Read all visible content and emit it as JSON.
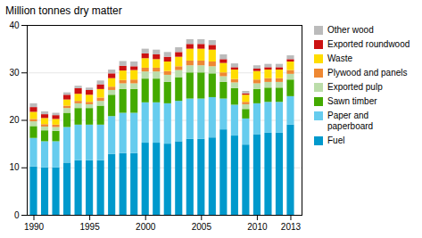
{
  "chart_data": {
    "type": "bar",
    "title": "Million tonnes dry matter",
    "stacked": true,
    "x": [
      1990,
      1991,
      1992,
      1993,
      1994,
      1995,
      1996,
      1997,
      1998,
      1999,
      2000,
      2001,
      2002,
      2003,
      2004,
      2005,
      2006,
      2007,
      2008,
      2009,
      2010,
      2011,
      2012,
      2013
    ],
    "series": [
      {
        "name": "Fuel",
        "color": "#0099cc",
        "values": [
          10.2,
          10.0,
          10.0,
          11.0,
          11.5,
          11.5,
          11.5,
          12.8,
          13.0,
          13.0,
          15.2,
          15.2,
          15.0,
          15.5,
          16.0,
          16.0,
          16.3,
          18.0,
          16.7,
          14.8,
          17.0,
          17.3,
          17.3,
          19.0
        ]
      },
      {
        "name": "Paper and\npaperboard",
        "color": "#66ccee",
        "values": [
          6.0,
          5.5,
          5.5,
          7.5,
          7.5,
          7.5,
          7.5,
          8.0,
          8.5,
          8.5,
          8.5,
          8.5,
          8.5,
          8.5,
          8.5,
          8.5,
          8.5,
          6.5,
          6.5,
          5.5,
          6.5,
          6.5,
          6.5,
          6.0
        ]
      },
      {
        "name": "Sawn timber",
        "color": "#44aa00",
        "values": [
          2.5,
          2.3,
          2.2,
          3.0,
          3.5,
          3.5,
          4.0,
          4.5,
          5.0,
          5.0,
          5.0,
          5.0,
          4.5,
          5.0,
          5.5,
          5.5,
          5.0,
          3.5,
          3.5,
          2.0,
          3.0,
          3.0,
          3.0,
          3.5
        ]
      },
      {
        "name": "Exported pulp",
        "color": "#bbddaa",
        "values": [
          1.0,
          0.8,
          0.8,
          1.0,
          1.0,
          0.8,
          1.0,
          1.0,
          1.2,
          1.2,
          1.5,
          1.5,
          1.5,
          1.5,
          1.5,
          1.5,
          1.5,
          1.2,
          1.2,
          1.0,
          1.2,
          1.2,
          1.2,
          1.2
        ]
      },
      {
        "name": "Plywood and panels",
        "color": "#ee8833",
        "values": [
          0.5,
          0.5,
          0.5,
          0.5,
          0.5,
          0.5,
          0.7,
          0.7,
          0.7,
          0.8,
          0.8,
          0.8,
          0.8,
          0.8,
          1.0,
          1.0,
          1.0,
          0.8,
          0.7,
          0.5,
          0.8,
          0.8,
          0.8,
          0.8
        ]
      },
      {
        "name": "Waste",
        "color": "#ffdd00",
        "values": [
          1.5,
          1.3,
          1.2,
          1.3,
          1.5,
          1.5,
          1.8,
          1.8,
          2.0,
          2.0,
          2.0,
          1.8,
          2.0,
          2.0,
          2.5,
          2.5,
          2.5,
          2.0,
          2.0,
          1.5,
          1.8,
          1.8,
          1.8,
          1.8
        ]
      },
      {
        "name": "Exported roundwood",
        "color": "#cc1111",
        "values": [
          1.0,
          0.8,
          0.8,
          1.0,
          1.2,
          1.0,
          1.0,
          1.0,
          1.0,
          0.8,
          1.0,
          1.0,
          1.0,
          1.0,
          1.0,
          1.0,
          1.0,
          0.8,
          0.5,
          0.3,
          0.5,
          0.5,
          0.5,
          0.5
        ]
      },
      {
        "name": "Other wood",
        "color": "#bbbbbb",
        "values": [
          0.8,
          0.6,
          0.5,
          0.5,
          0.5,
          0.5,
          0.8,
          0.8,
          1.0,
          1.0,
          1.0,
          1.0,
          1.0,
          1.0,
          1.0,
          1.0,
          1.0,
          1.0,
          0.8,
          0.5,
          0.7,
          0.7,
          0.7,
          0.8
        ]
      }
    ],
    "xlim": [
      1989.4,
      2014.0
    ],
    "xticks": [
      1990,
      1995,
      2000,
      2005,
      2010,
      2013
    ],
    "ylim": [
      0,
      40
    ],
    "yticks": [
      0,
      10,
      20,
      30,
      40
    ],
    "grid": true,
    "legend": "right"
  }
}
